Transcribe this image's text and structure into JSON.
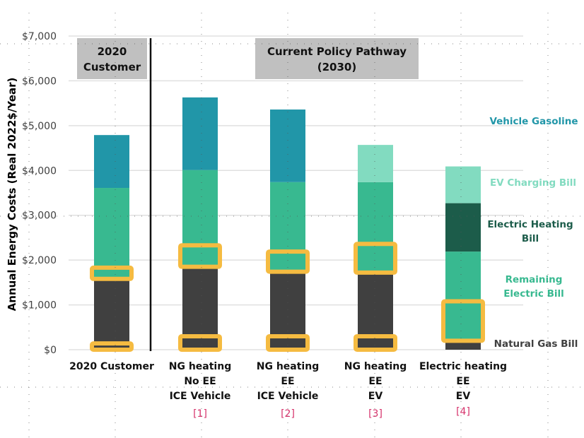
{
  "chart_data": {
    "type": "bar",
    "stacked": true,
    "title": "",
    "xlabel": "",
    "ylabel": "Annual Energy Costs (Real 2022$/Year)",
    "ylim": [
      0,
      7000
    ],
    "yticks": [
      0,
      1000,
      2000,
      3000,
      4000,
      5000,
      6000,
      7000
    ],
    "ytick_labels": [
      "$0",
      "$1,000",
      "$2,000",
      "$3,000",
      "$4,000",
      "$5,000",
      "$6,000",
      "$7,000"
    ],
    "grid": true,
    "legend_placement": "right",
    "group_headers": [
      {
        "lines": [
          "2020",
          "Customer"
        ],
        "covers": [
          0
        ]
      },
      {
        "lines": [
          "Current Policy Pathway",
          "(2030)"
        ],
        "covers": [
          1,
          2,
          3,
          4
        ]
      }
    ],
    "categories": [
      {
        "lines": [
          "2020 Customer"
        ],
        "ref": ""
      },
      {
        "lines": [
          "NG heating",
          "No EE",
          "ICE Vehicle"
        ],
        "ref": "[1]"
      },
      {
        "lines": [
          "NG heating",
          "EE",
          "ICE Vehicle"
        ],
        "ref": "[2]"
      },
      {
        "lines": [
          "NG heating",
          "EE",
          "EV"
        ],
        "ref": "[3]"
      },
      {
        "lines": [
          "Electric heating",
          "EE",
          "EV"
        ],
        "ref": "[4]"
      }
    ],
    "series": [
      {
        "name": "Natural Gas Bill",
        "color": "#404040",
        "label_color": "#404040",
        "values": [
          1550,
          1850,
          1740,
          1720,
          200
        ]
      },
      {
        "name": "Remaining Electric Bill",
        "color": "#38b990",
        "label_color": "#38b990",
        "values": [
          2060,
          2160,
          2000,
          2020,
          1990
        ]
      },
      {
        "name": "Electric Heating Bill",
        "color": "#1c5c4a",
        "label_color": "#1c5c4a",
        "values": [
          0,
          0,
          0,
          0,
          1080
        ]
      },
      {
        "name": "EV Charging Bill",
        "color": "#82dbc0",
        "label_color": "#82dbc0",
        "values": [
          0,
          0,
          0,
          830,
          820
        ]
      },
      {
        "name": "Vehicle Gasoline",
        "color": "#2196a8",
        "label_color": "#2196a8",
        "values": [
          1180,
          1620,
          1620,
          0,
          0
        ]
      }
    ],
    "highlights": {
      "color": "#f5bb41",
      "ranges": [
        [
          [
            0,
            140
          ],
          [
            1580,
            1830
          ]
        ],
        [
          [
            0,
            300
          ],
          [
            1850,
            2330
          ]
        ],
        [
          [
            0,
            300
          ],
          [
            1740,
            2190
          ]
        ],
        [
          [
            0,
            300
          ],
          [
            1720,
            2360
          ]
        ],
        [
          [
            200,
            1080
          ]
        ]
      ]
    }
  }
}
